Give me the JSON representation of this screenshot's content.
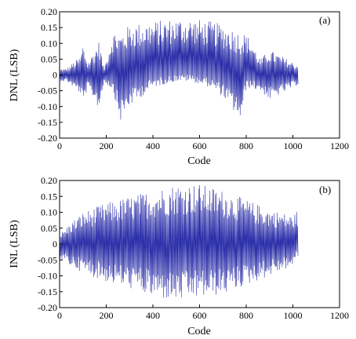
{
  "chart_data": [
    {
      "type": "line",
      "panel_label": "(a)",
      "xlabel": "Code",
      "ylabel": "DNL (LSB)",
      "xlim": [
        0,
        1200
      ],
      "ylim": [
        -0.2,
        0.2
      ],
      "x_ticks": [
        "0",
        "200",
        "400",
        "600",
        "800",
        "1000",
        "1200"
      ],
      "y_ticks": [
        "0.20",
        "0.15",
        "0.10",
        "0.05",
        "0",
        "-0.05",
        "-0.10",
        "-0.15",
        "-0.20"
      ],
      "color": "#2b2fa8",
      "series": [
        {
          "x_range": [
            0,
            1023
          ],
          "upper_envelope": [
            [
              0,
              0.02
            ],
            [
              30,
              0.02
            ],
            [
              60,
              0.04
            ],
            [
              90,
              0.06
            ],
            [
              100,
              0.1
            ],
            [
              120,
              0.04
            ],
            [
              150,
              0.08
            ],
            [
              170,
              0.11
            ],
            [
              190,
              0.02
            ],
            [
              230,
              0.14
            ],
            [
              260,
              0.13
            ],
            [
              300,
              0.16
            ],
            [
              400,
              0.17
            ],
            [
              500,
              0.18
            ],
            [
              560,
              0.18
            ],
            [
              650,
              0.17
            ],
            [
              700,
              0.16
            ],
            [
              760,
              0.14
            ],
            [
              800,
              0.13
            ],
            [
              820,
              0.11
            ],
            [
              860,
              0.05
            ],
            [
              900,
              0.08
            ],
            [
              950,
              0.06
            ],
            [
              1000,
              0.04
            ],
            [
              1023,
              0.03
            ]
          ],
          "lower_envelope": [
            [
              0,
              -0.02
            ],
            [
              30,
              -0.02
            ],
            [
              60,
              -0.04
            ],
            [
              90,
              -0.06
            ],
            [
              100,
              -0.1
            ],
            [
              120,
              -0.04
            ],
            [
              150,
              -0.08
            ],
            [
              170,
              -0.11
            ],
            [
              190,
              -0.02
            ],
            [
              230,
              -0.05
            ],
            [
              260,
              -0.15
            ],
            [
              300,
              -0.1
            ],
            [
              400,
              -0.04
            ],
            [
              500,
              -0.02
            ],
            [
              560,
              -0.02
            ],
            [
              650,
              -0.04
            ],
            [
              700,
              -0.07
            ],
            [
              760,
              -0.13
            ],
            [
              780,
              -0.15
            ],
            [
              800,
              -0.04
            ],
            [
              860,
              -0.05
            ],
            [
              900,
              -0.08
            ],
            [
              950,
              -0.06
            ],
            [
              1000,
              -0.04
            ],
            [
              1023,
              -0.03
            ]
          ]
        }
      ]
    },
    {
      "type": "line",
      "panel_label": "(b)",
      "xlabel": "Code",
      "ylabel": "INL (LSB)",
      "xlim": [
        0,
        1200
      ],
      "ylim": [
        -0.2,
        0.2
      ],
      "x_ticks": [
        "0",
        "200",
        "400",
        "600",
        "800",
        "1000",
        "1200"
      ],
      "y_ticks": [
        "0.20",
        "0.15",
        "0.10",
        "0.05",
        "0",
        "-0.05",
        "-0.10",
        "-0.15",
        "-0.20"
      ],
      "color": "#2b2fa8",
      "series": [
        {
          "x_range": [
            0,
            1023
          ],
          "upper_envelope": [
            [
              0,
              0.03
            ],
            [
              50,
              0.07
            ],
            [
              100,
              0.1
            ],
            [
              200,
              0.13
            ],
            [
              300,
              0.15
            ],
            [
              400,
              0.17
            ],
            [
              500,
              0.19
            ],
            [
              600,
              0.19
            ],
            [
              700,
              0.17
            ],
            [
              800,
              0.14
            ],
            [
              900,
              0.11
            ],
            [
              1000,
              0.09
            ],
            [
              1023,
              0.11
            ]
          ],
          "lower_envelope": [
            [
              0,
              -0.05
            ],
            [
              50,
              -0.07
            ],
            [
              100,
              -0.09
            ],
            [
              200,
              -0.12
            ],
            [
              300,
              -0.14
            ],
            [
              400,
              -0.17
            ],
            [
              500,
              -0.18
            ],
            [
              600,
              -0.17
            ],
            [
              700,
              -0.16
            ],
            [
              800,
              -0.13
            ],
            [
              900,
              -0.1
            ],
            [
              1000,
              -0.07
            ],
            [
              1023,
              -0.04
            ]
          ]
        }
      ]
    }
  ]
}
